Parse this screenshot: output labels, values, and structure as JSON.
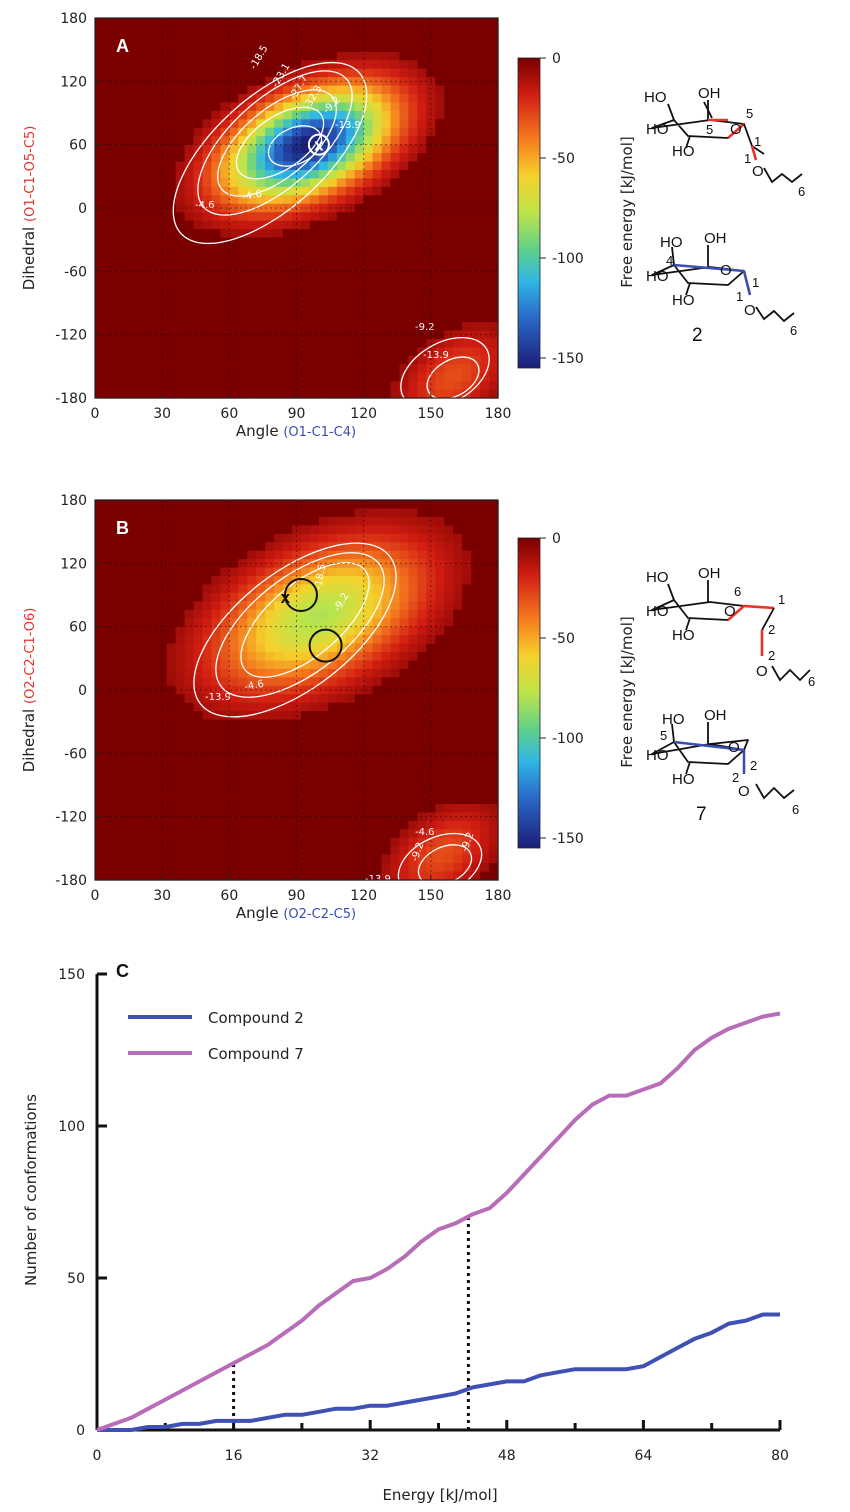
{
  "chart_data": [
    {
      "type": "heatmap",
      "panel": "A",
      "xlabel_prefix": "Angle",
      "xlabel_atoms": "(O1-C1-C4)",
      "ylabel_prefix": "Dihedral",
      "ylabel_atoms": "(O1-C1-O5-C5)",
      "x_ticks": [
        "0",
        "30",
        "60",
        "90",
        "120",
        "150",
        "180"
      ],
      "y_ticks": [
        "180",
        "120",
        "60",
        "0",
        "-60",
        "-120",
        "-180"
      ],
      "xlim": [
        0,
        180
      ],
      "ylim": [
        -180,
        180
      ],
      "colorbar": {
        "label": "Free energy [kJ/mol]",
        "ticks": [
          "0",
          "-50",
          "-100",
          "-150"
        ],
        "range": [
          -155,
          0
        ]
      },
      "contour_labels": [
        "-18.5",
        "-23.1",
        "-27.7",
        "-32.3",
        "-9.2",
        "-13.9",
        "-4.6",
        "-4.6",
        "-9.2",
        "-13.9"
      ],
      "minimum": {
        "angle": 100,
        "dihedral": 60,
        "marker": "x"
      },
      "basins": [
        {
          "angle": 95,
          "dihedral": 60,
          "depth": -155,
          "spread_angle": 22,
          "spread_dihedral": 32
        },
        {
          "angle": 160,
          "dihedral": -160,
          "depth": -30,
          "spread_angle": 15,
          "spread_dihedral": 28
        }
      ]
    },
    {
      "type": "heatmap",
      "panel": "B",
      "xlabel_prefix": "Angle",
      "xlabel_atoms": "(O2-C2-C5)",
      "ylabel_prefix": "Dihedral",
      "ylabel_atoms": "(O2-C2-C1-O6)",
      "x_ticks": [
        "0",
        "30",
        "60",
        "90",
        "120",
        "150",
        "180"
      ],
      "y_ticks": [
        "180",
        "120",
        "60",
        "0",
        "-60",
        "-120",
        "-180"
      ],
      "xlim": [
        0,
        180
      ],
      "ylim": [
        -180,
        180
      ],
      "colorbar": {
        "label": "Free energy [kJ/mol]",
        "ticks": [
          "0",
          "-50",
          "-100",
          "-150"
        ],
        "range": [
          -155,
          0
        ]
      },
      "contour_labels": [
        "-18.5",
        "-9.2",
        "-13.9",
        "-4.6",
        "-4.6",
        "-9.2",
        "-9.2",
        "-13.9"
      ],
      "minimum": {
        "angle": 85,
        "dihedral": 88,
        "marker": "x"
      },
      "circles": [
        {
          "angle": 92,
          "dihedral": 90
        },
        {
          "angle": 103,
          "dihedral": 42
        }
      ],
      "basins": [
        {
          "angle": 100,
          "dihedral": 70,
          "depth": -80,
          "spread_angle": 28,
          "spread_dihedral": 42
        },
        {
          "angle": 155,
          "dihedral": -155,
          "depth": -30,
          "spread_angle": 15,
          "spread_dihedral": 28
        }
      ]
    },
    {
      "type": "line",
      "panel": "C",
      "xlabel": "Energy [kJ/mol]",
      "ylabel": "Number of conformations",
      "xlim": [
        0,
        80
      ],
      "ylim": [
        0,
        150
      ],
      "x_ticks": [
        "0",
        "16",
        "32",
        "48",
        "64",
        "80"
      ],
      "y_ticks": [
        "0",
        "50",
        "100",
        "150"
      ],
      "series": [
        {
          "name": "Compound 2",
          "color": "#3f51b5",
          "x": [
            0,
            2,
            4,
            6,
            8,
            10,
            12,
            14,
            16,
            18,
            20,
            22,
            24,
            26,
            28,
            30,
            32,
            34,
            36,
            38,
            40,
            42,
            44,
            46,
            48,
            50,
            52,
            54,
            56,
            58,
            60,
            62,
            64,
            66,
            68,
            70,
            72,
            74,
            76,
            78,
            80
          ],
          "values": [
            0,
            0,
            0,
            1,
            1,
            2,
            2,
            3,
            3,
            3,
            4,
            5,
            5,
            6,
            7,
            7,
            8,
            8,
            9,
            10,
            11,
            12,
            14,
            15,
            16,
            16,
            18,
            19,
            20,
            20,
            20,
            20,
            21,
            24,
            27,
            30,
            32,
            35,
            36,
            38,
            38
          ]
        },
        {
          "name": "Compound 7",
          "color": "#b86db8",
          "x": [
            0,
            2,
            4,
            6,
            8,
            10,
            12,
            14,
            16,
            18,
            20,
            22,
            24,
            26,
            28,
            30,
            32,
            34,
            36,
            38,
            40,
            42,
            44,
            46,
            48,
            50,
            52,
            54,
            56,
            58,
            60,
            62,
            64,
            66,
            68,
            70,
            72,
            74,
            76,
            78,
            80
          ],
          "values": [
            0,
            2,
            4,
            7,
            10,
            13,
            16,
            19,
            22,
            25,
            28,
            32,
            36,
            41,
            45,
            49,
            50,
            53,
            57,
            62,
            66,
            68,
            71,
            73,
            78,
            84,
            90,
            96,
            102,
            107,
            110,
            110,
            112,
            114,
            119,
            125,
            129,
            132,
            134,
            136,
            137
          ]
        }
      ],
      "vlines": [
        {
          "x": 16,
          "to_series": 1
        },
        {
          "x": 43.5,
          "to_series": 1
        }
      ]
    }
  ],
  "structures": [
    {
      "compound": "2",
      "ring_labels": [
        "HO",
        "OH",
        "5",
        "O",
        "5",
        "HO",
        "HO",
        "1",
        "O",
        "1",
        "6"
      ]
    },
    {
      "compound": "2",
      "ring_labels": [
        "HO",
        "OH",
        "4",
        "O",
        "HO",
        "HO",
        "1",
        "O",
        "1",
        "6"
      ]
    },
    {
      "compound": "7",
      "ring_labels": [
        "HO",
        "OH",
        "6",
        "O",
        "1",
        "HO",
        "HO",
        "2",
        "O",
        "2",
        "6"
      ]
    },
    {
      "compound": "7",
      "ring_labels": [
        "HO",
        "OH",
        "5",
        "O",
        "HO",
        "HO",
        "2",
        "O",
        "2",
        "6"
      ]
    }
  ],
  "colors": {
    "highlight_red": "#e8322a",
    "highlight_blue": "#3a4fb0",
    "atom_label_red": "#e8322a",
    "atom_label_blue": "#3a4fb0"
  }
}
